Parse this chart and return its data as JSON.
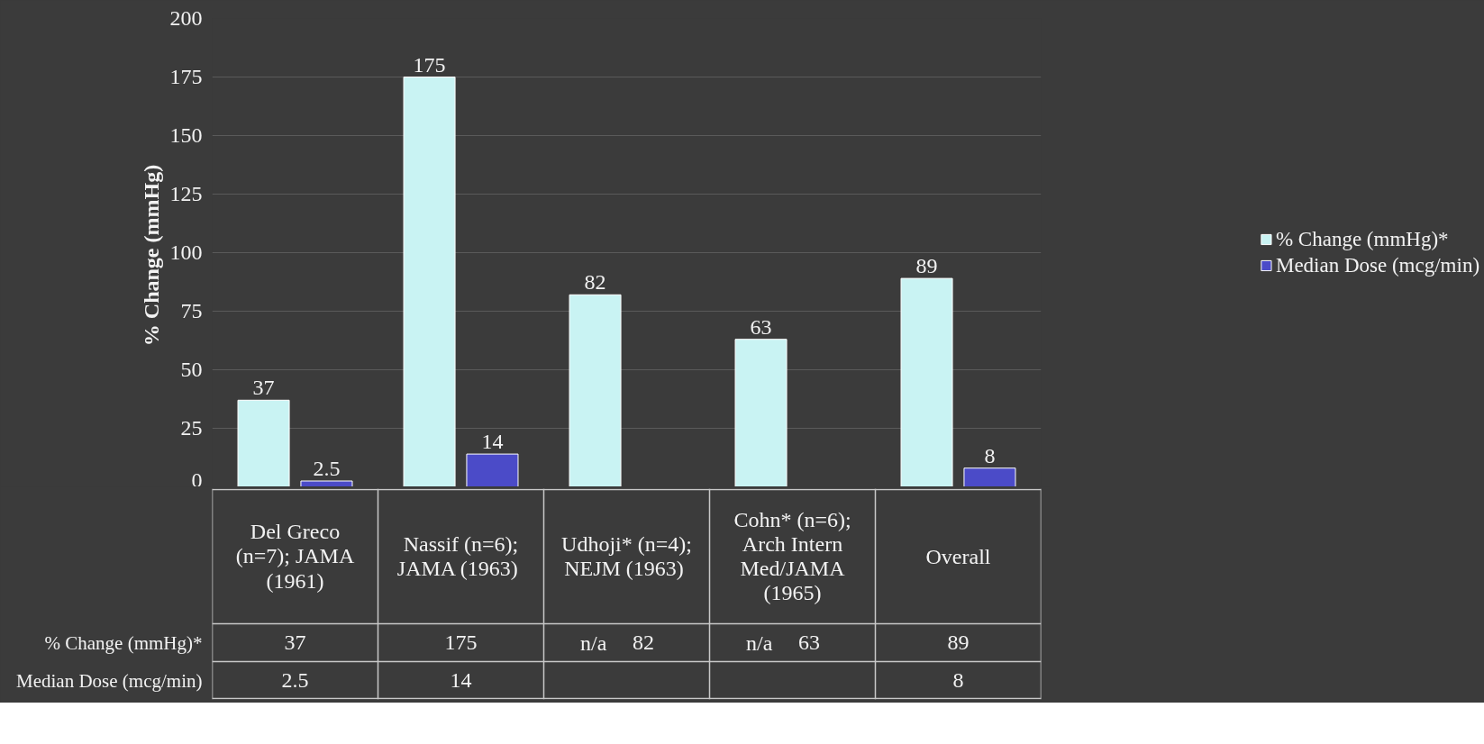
{
  "chart_data": {
    "type": "bar",
    "ylabel": "% Change  (mmHg)",
    "categories": [
      "Del Greco (n=7); JAMA (1961)",
      "Nassif (n=6); JAMA  (1963)",
      "Udhoji* (n=4); NEJM  (1963)",
      "Cohn* (n=6); Arch Intern Med/JAMA (1965)",
      "Overall"
    ],
    "series": [
      {
        "name": "% Change (mmHg)*",
        "color": "#c9f3f3",
        "values": [
          37,
          175,
          82,
          63,
          89
        ],
        "value_labels": [
          "37",
          "175",
          "82",
          "63",
          "89"
        ]
      },
      {
        "name": "Median Dose (mcg/min)",
        "color": "#4b4bc8",
        "values": [
          2.5,
          14,
          null,
          null,
          8
        ],
        "value_labels": [
          "2.5",
          "14",
          null,
          null,
          "8"
        ]
      }
    ],
    "annotations": [
      "n/a",
      "n/a"
    ],
    "ylim": [
      0,
      200
    ],
    "yticks": [
      0,
      25,
      50,
      75,
      100,
      125,
      150,
      175,
      200
    ],
    "grid": "y",
    "legend": "right",
    "data_labels": true
  }
}
